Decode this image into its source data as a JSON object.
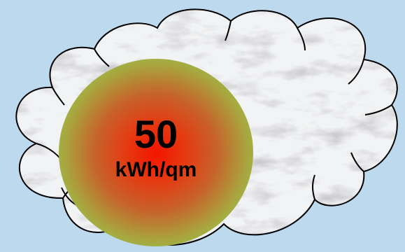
{
  "background_color": "#bcd9ee",
  "cloud": {
    "fill_style": "white-grey marble texture",
    "outline_color": "#000000"
  },
  "badge": {
    "value": "50",
    "unit": "kWh/qm",
    "gradient_center_color": "#f41400",
    "gradient_edge_color": "#8fd04e"
  }
}
